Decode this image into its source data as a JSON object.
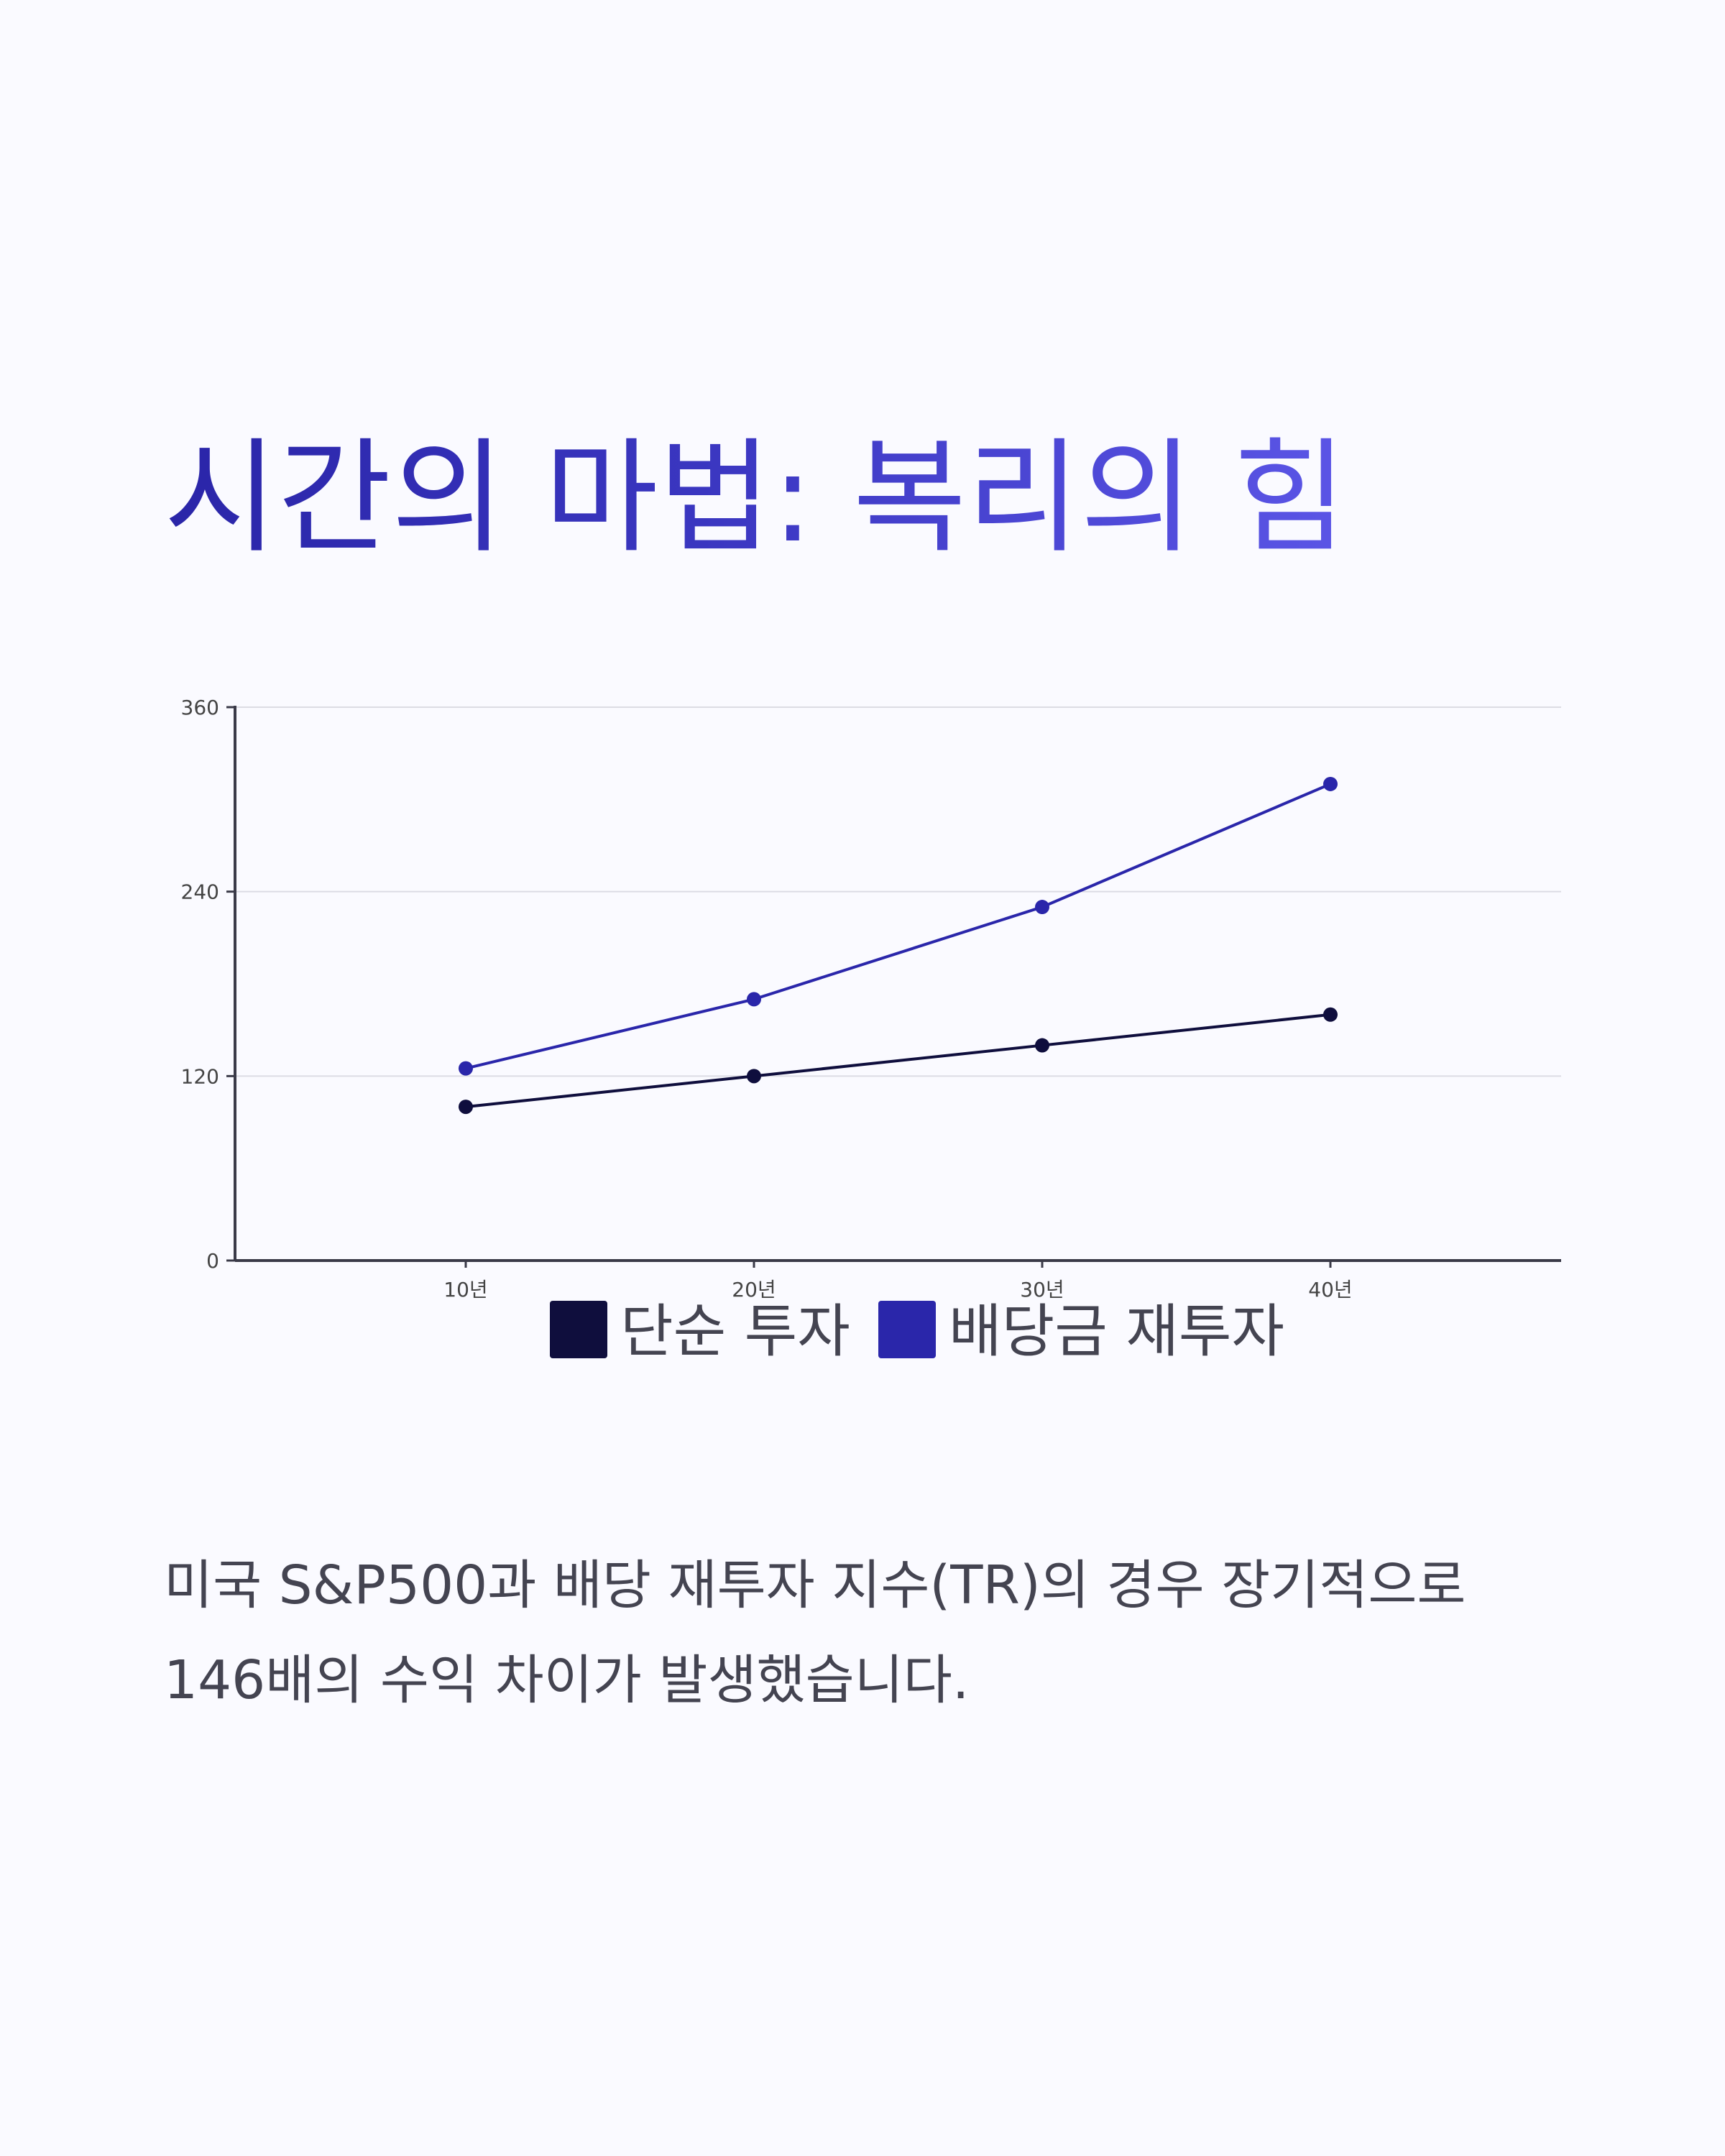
{
  "header": {
    "title": "시간의 마법: 복리의 힘"
  },
  "chart_data": {
    "type": "line",
    "categories": [
      "10년",
      "20년",
      "30년",
      "40년"
    ],
    "series": [
      {
        "name": "단순 투자",
        "values": [
          100,
          120,
          140,
          160
        ],
        "color": "#0f0e3d"
      },
      {
        "name": "배당금 재투자",
        "values": [
          125,
          170,
          230,
          310
        ],
        "color": "#2a26aa"
      }
    ],
    "ylim": [
      0,
      360
    ],
    "yticks": [
      0,
      120,
      240,
      360
    ],
    "grid": true,
    "legend_position": "bottom",
    "xlabel": "",
    "ylabel": ""
  },
  "description": {
    "lines": [
      "미국 S&P500과 배당 재투자 지수(TR)의 경우 장기적으로",
      "146배의 수익 차이가 발생했습니다."
    ]
  }
}
